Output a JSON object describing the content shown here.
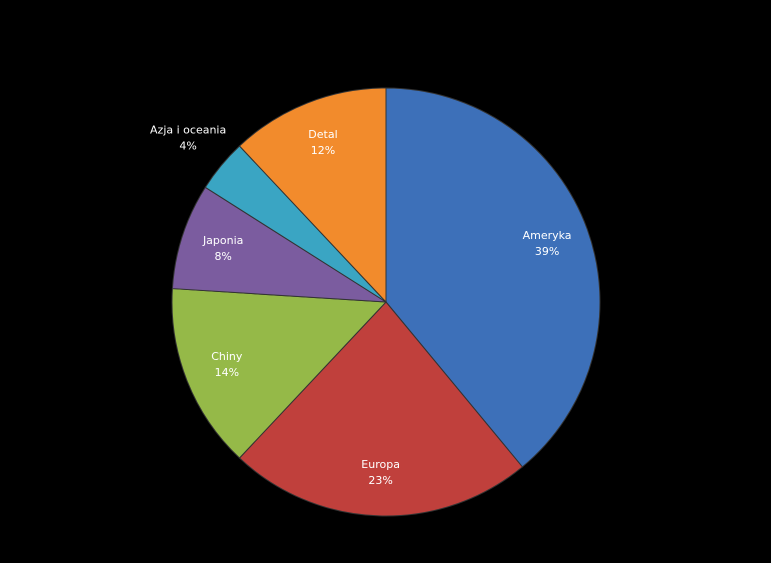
{
  "chart_data": {
    "type": "pie",
    "categories": [
      "Ameryka",
      "Europa",
      "Chiny",
      "Japonia",
      "Azja i oceania",
      "Detal"
    ],
    "values": [
      39,
      23,
      14,
      8,
      4,
      12
    ],
    "value_labels": [
      "39%",
      "23%",
      "14%",
      "8%",
      "4%",
      "12%"
    ],
    "colors": [
      "#3d70b9",
      "#c0403c",
      "#95b948",
      "#7b5c9f",
      "#3aa5c3",
      "#f28b2c"
    ]
  }
}
